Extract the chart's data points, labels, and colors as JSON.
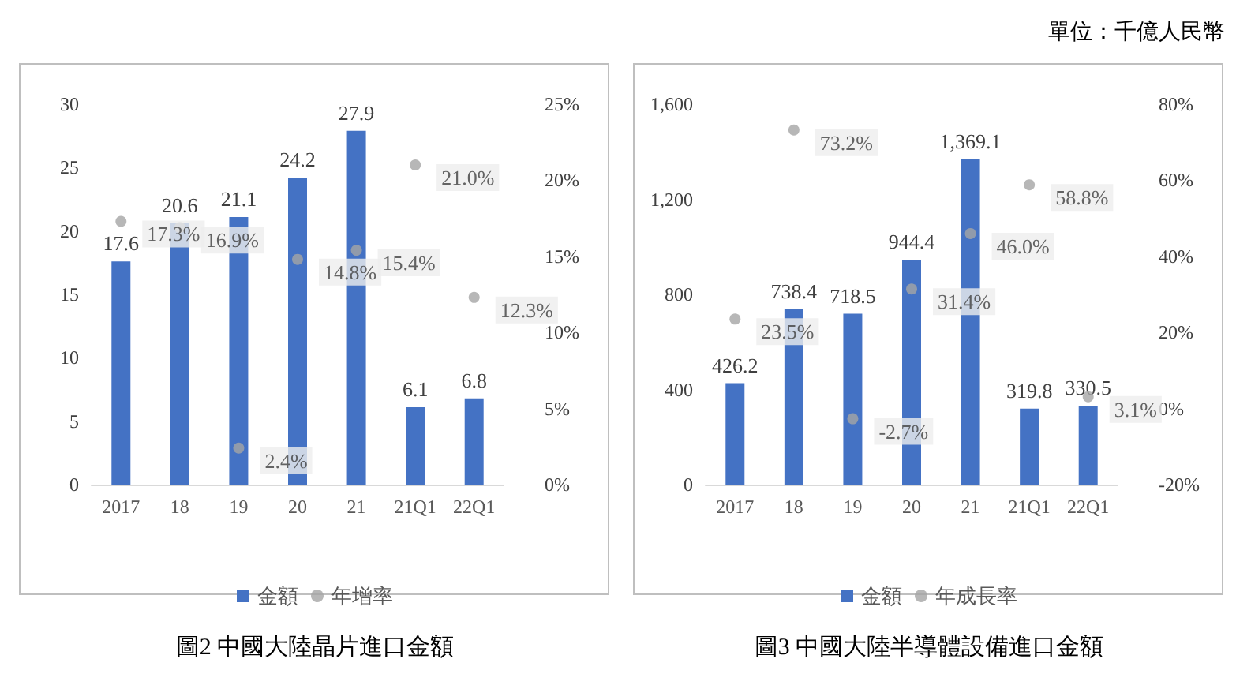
{
  "chart_data": [
    {
      "type": "bar",
      "title": "圖2 中國大陸晶片進口金額",
      "categories": [
        "2017",
        "18",
        "19",
        "20",
        "21",
        "21Q1",
        "22Q1"
      ],
      "legend": "bottom",
      "series": [
        {
          "name": "金額",
          "color": "#4472c4",
          "values": [
            17.6,
            20.6,
            21.1,
            24.2,
            27.9,
            6.1,
            6.8
          ],
          "value_labels": [
            "17.6",
            "20.6",
            "21.1",
            "24.2",
            "27.9",
            "6.1",
            "6.8"
          ]
        },
        {
          "name": "年增率",
          "type": "scatter",
          "axis": "y2",
          "color": "#a5a5a5",
          "values": [
            17.3,
            16.9,
            2.4,
            14.8,
            15.4,
            21.0,
            12.3
          ],
          "value_labels": [
            "17.3%",
            "16.9%",
            "2.4%",
            "14.8%",
            "15.4%",
            "21.0%",
            "12.3%"
          ]
        }
      ],
      "ylim": [
        0,
        30
      ],
      "yticks": [
        0,
        5,
        10,
        15,
        20,
        25,
        30
      ],
      "y2lim": [
        0,
        25
      ],
      "y2ticks": [
        {
          "value": 0,
          "label": "0%"
        },
        {
          "value": 5,
          "label": "5%"
        },
        {
          "value": 10,
          "label": "10%"
        },
        {
          "value": 15,
          "label": "15%"
        },
        {
          "value": 20,
          "label": "20%"
        },
        {
          "value": 25,
          "label": "25%"
        }
      ]
    },
    {
      "type": "bar",
      "title": "圖3 中國大陸半導體設備進口金額",
      "annotations": [
        "單位：千億人民幣"
      ],
      "categories": [
        "2017",
        "18",
        "19",
        "20",
        "21",
        "21Q1",
        "22Q1"
      ],
      "legend": "bottom",
      "series": [
        {
          "name": "金額",
          "color": "#4472c4",
          "values": [
            426.2,
            738.4,
            718.5,
            944.4,
            1369.1,
            319.8,
            330.5
          ],
          "value_labels": [
            "426.2",
            "738.4",
            "718.5",
            "944.4",
            "1,369.1",
            "319.8",
            "330.5"
          ]
        },
        {
          "name": "年成長率",
          "type": "scatter",
          "axis": "y2",
          "color": "#a5a5a5",
          "values": [
            23.5,
            73.2,
            -2.7,
            31.4,
            46.0,
            58.8,
            3.1
          ],
          "value_labels": [
            "23.5%",
            "73.2%",
            "-2.7%",
            "31.4%",
            "46.0%",
            "58.8%",
            "3.1%"
          ]
        }
      ],
      "ylim": [
        0,
        1600
      ],
      "yticks": [
        0,
        {
          "value": 400,
          "label": "400"
        },
        {
          "value": 800,
          "label": "800"
        },
        {
          "value": 1200,
          "label": "1,200"
        },
        {
          "value": 1600,
          "label": "1,600"
        }
      ],
      "y2lim": [
        -20,
        80
      ],
      "y2ticks": [
        {
          "value": -20,
          "label": "-20%"
        },
        {
          "value": 0,
          "label": "0%"
        },
        {
          "value": 20,
          "label": "20%"
        },
        {
          "value": 40,
          "label": "40%"
        },
        {
          "value": 60,
          "label": "60%"
        },
        {
          "value": 80,
          "label": "80%"
        }
      ]
    }
  ]
}
